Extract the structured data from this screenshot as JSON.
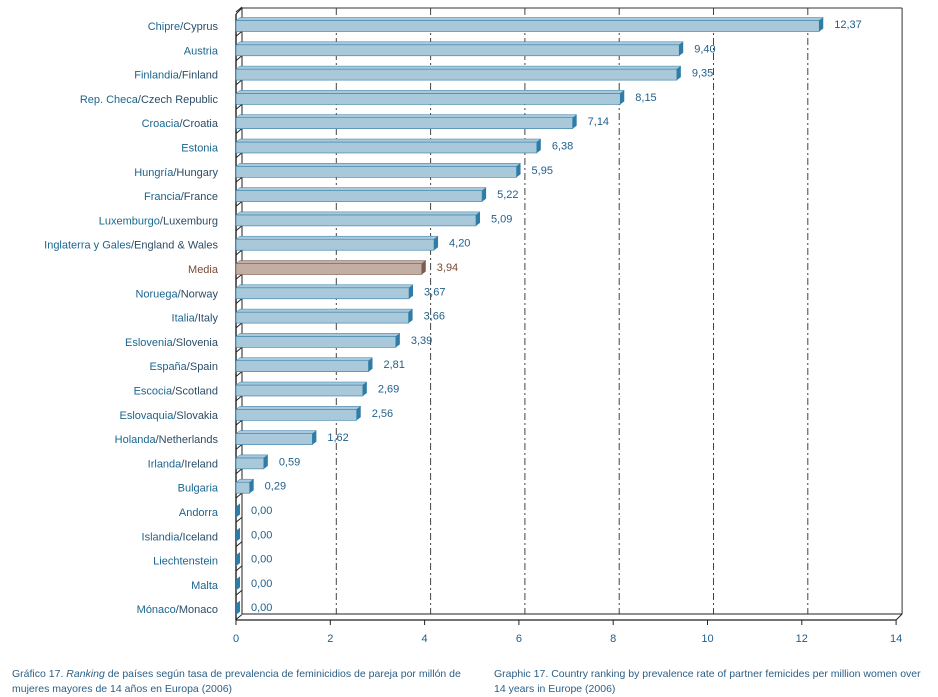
{
  "chart_data": {
    "type": "bar",
    "orientation": "horizontal",
    "categories": [
      {
        "es": "Chipre",
        "en": "Cyprus"
      },
      {
        "es": "",
        "en": "Austria"
      },
      {
        "es": "Finlandia",
        "en": "Finland"
      },
      {
        "es": "Rep. Checa",
        "en": "Czech Republic"
      },
      {
        "es": "Croacia",
        "en": "Croatia"
      },
      {
        "es": "",
        "en": "Estonia"
      },
      {
        "es": "Hungría",
        "en": "Hungary"
      },
      {
        "es": "Francia",
        "en": "France"
      },
      {
        "es": "Luxemburgo",
        "en": "Luxemburg"
      },
      {
        "es": "Inglaterra y Gales",
        "en": "England & Wales"
      },
      {
        "es": "Media",
        "en": "",
        "highlight": true
      },
      {
        "es": "Noruega",
        "en": "Norway"
      },
      {
        "es": "Italia",
        "en": "Italy"
      },
      {
        "es": "Eslovenia",
        "en": "Slovenia"
      },
      {
        "es": "España",
        "en": "Spain"
      },
      {
        "es": "Escocia",
        "en": "Scotland"
      },
      {
        "es": "Eslovaquia",
        "en": "Slovakia"
      },
      {
        "es": "Holanda",
        "en": "Netherlands"
      },
      {
        "es": "Irlanda",
        "en": "Ireland"
      },
      {
        "es": "",
        "en": "Bulgaria"
      },
      {
        "es": "",
        "en": "Andorra"
      },
      {
        "es": "Islandia",
        "en": "Iceland"
      },
      {
        "es": "",
        "en": "Liechtenstein"
      },
      {
        "es": "",
        "en": "Malta"
      },
      {
        "es": "Mónaco",
        "en": "Monaco"
      }
    ],
    "values": [
      12.37,
      9.4,
      9.35,
      8.15,
      7.14,
      6.38,
      5.95,
      5.22,
      5.09,
      4.2,
      3.94,
      3.67,
      3.66,
      3.39,
      2.81,
      2.69,
      2.56,
      1.62,
      0.59,
      0.29,
      0.0,
      0.0,
      0.0,
      0.0,
      0.0
    ],
    "value_labels": [
      "12,37",
      "9,40",
      "9,35",
      "8,15",
      "7,14",
      "6,38",
      "5,95",
      "5,22",
      "5,09",
      "4,20",
      "3,94",
      "3,67",
      "3,66",
      "3,39",
      "2,81",
      "2,69",
      "2,56",
      "1,62",
      "0,59",
      "0,29",
      "0,00",
      "0,00",
      "0,00",
      "0,00",
      "0,00"
    ],
    "xlim": [
      0,
      14
    ],
    "xticks": [
      "0",
      "2",
      "4",
      "6",
      "8",
      "10",
      "12",
      "14"
    ],
    "grid": "vertical dash-dot",
    "colors": {
      "bar": "#a9c8da",
      "bar_dark": "#2f7ca6",
      "highlight_bar": "#c2aea4",
      "highlight_dark": "#7d5d4e",
      "label_primary": "#1b6690",
      "label_secondary": "#2b4c66",
      "highlight_label": "#7a4b35"
    }
  },
  "caption_es": {
    "prefix": "Gráfico 17. ",
    "italic": "Ranking",
    "rest": " de países según tasa de prevalencia de feminicidios de pareja por millón de mujeres mayores de 14 años en Europa (2006)"
  },
  "caption_en": "Graphic 17. Country ranking by prevalence rate of partner femicides per million women over 14 years in Europe (2006)"
}
